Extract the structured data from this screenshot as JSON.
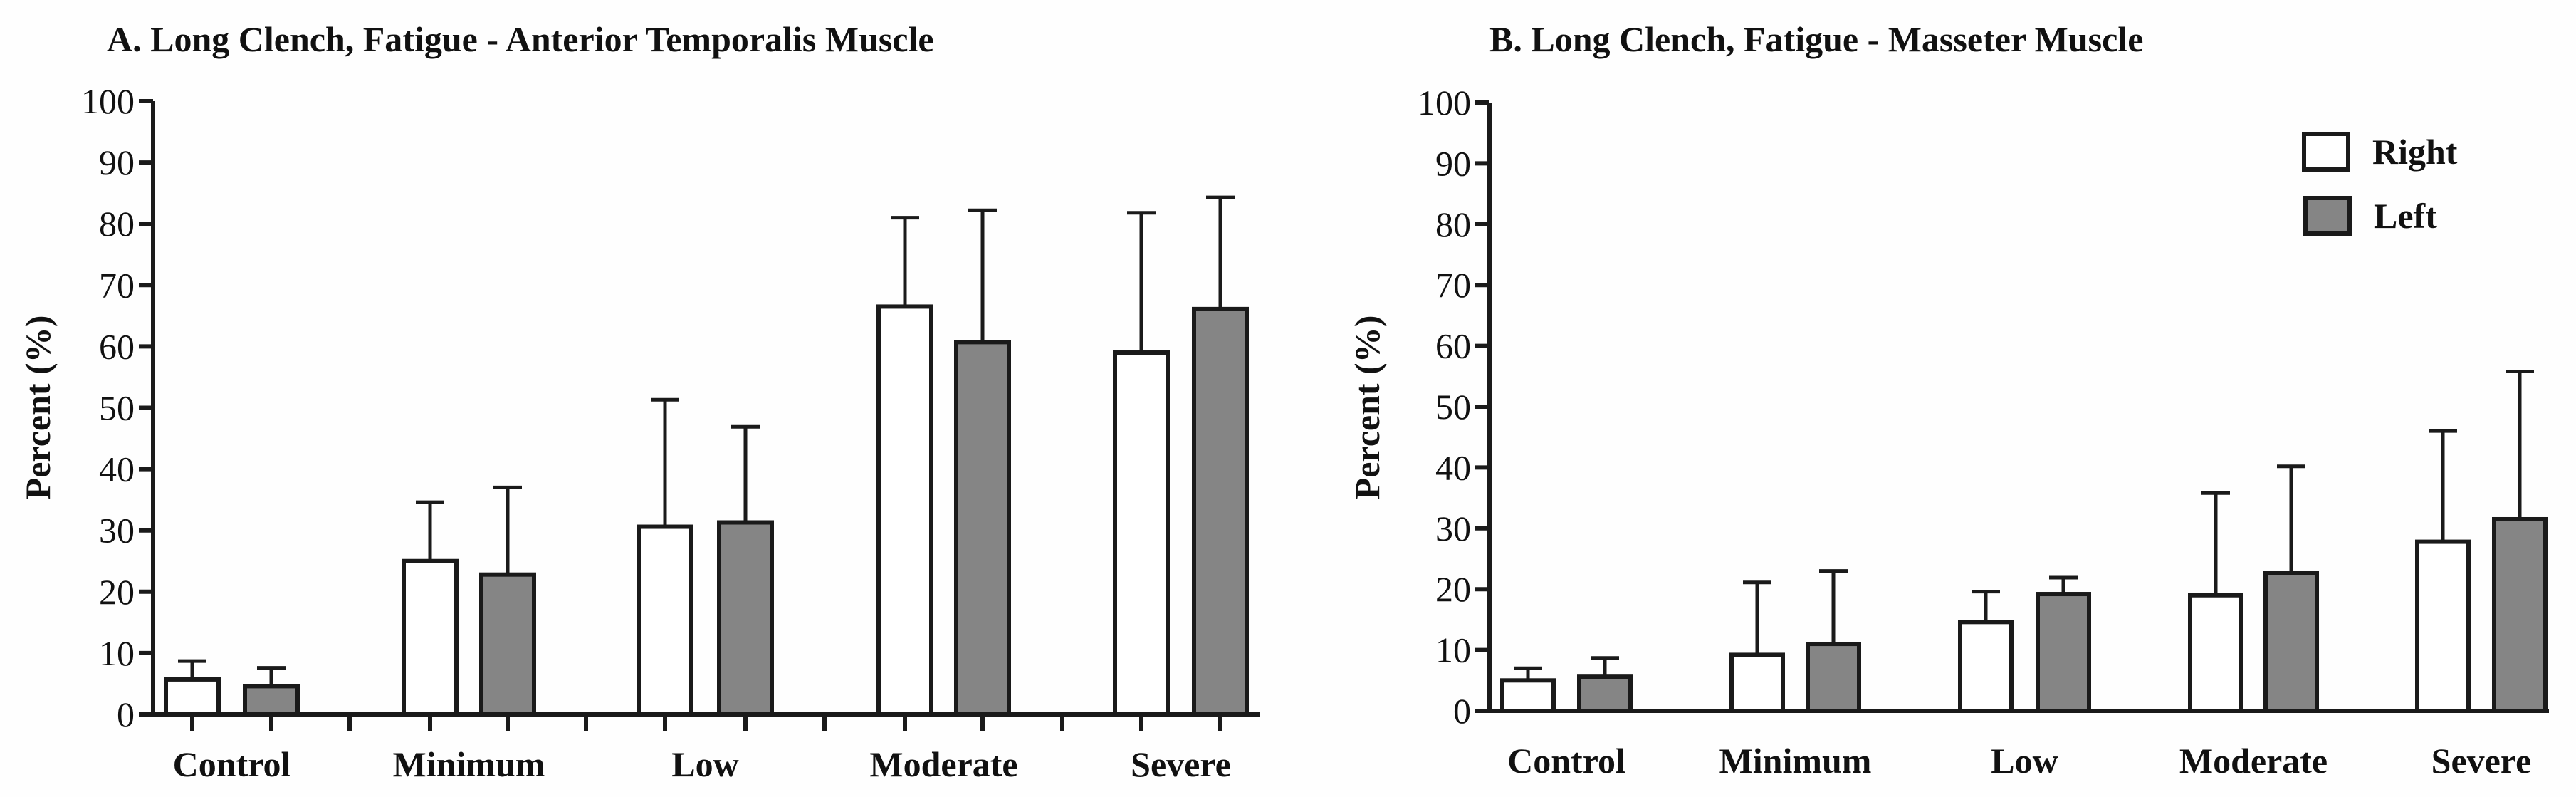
{
  "chart_data": [
    {
      "type": "bar",
      "title": "A. Long Clench, Fatigue - Anterior Temporalis Muscle",
      "xlabel": "",
      "ylabel": "Percent (%)",
      "ylim": [
        0,
        100
      ],
      "yticks": [
        "0",
        "10",
        "20",
        "30",
        "40",
        "50",
        "60",
        "70",
        "80",
        "90",
        "100"
      ],
      "categories": [
        "Control",
        "Minimum",
        "Low",
        "Moderate",
        "Severe"
      ],
      "x_ticks_shown": true,
      "legend": null,
      "series": [
        {
          "name": "Right",
          "color": "#ffffff",
          "values": [
            5.7,
            25.0,
            30.6,
            66.5,
            59.0
          ],
          "error_upper": [
            8.7,
            34.6,
            51.3,
            81.0,
            81.8
          ]
        },
        {
          "name": "Left",
          "color": "#858585",
          "values": [
            4.6,
            22.8,
            31.3,
            60.7,
            66.1
          ],
          "error_upper": [
            7.6,
            37.0,
            46.9,
            82.2,
            84.3
          ]
        }
      ]
    },
    {
      "type": "bar",
      "title": "B. Long Clench, Fatigue - Masseter Muscle",
      "xlabel": "",
      "ylabel": "Percent (%)",
      "ylim": [
        0,
        100
      ],
      "yticks": [
        "0",
        "10",
        "20",
        "30",
        "40",
        "50",
        "60",
        "70",
        "80",
        "90",
        "100"
      ],
      "categories": [
        "Control",
        "Minimum",
        "Low",
        "Moderate",
        "Severe"
      ],
      "x_ticks_shown": false,
      "legend": {
        "placement": "top-right",
        "entries": [
          "Right",
          "Left"
        ]
      },
      "series": [
        {
          "name": "Right",
          "color": "#ffffff",
          "values": [
            5.0,
            9.2,
            14.6,
            19.0,
            27.8
          ],
          "error_upper": [
            7.0,
            21.1,
            19.6,
            35.8,
            46.0
          ]
        },
        {
          "name": "Left",
          "color": "#858585",
          "values": [
            5.6,
            11.0,
            19.2,
            22.6,
            31.5
          ],
          "error_upper": [
            8.7,
            23.0,
            21.9,
            40.2,
            55.8
          ]
        }
      ]
    }
  ]
}
